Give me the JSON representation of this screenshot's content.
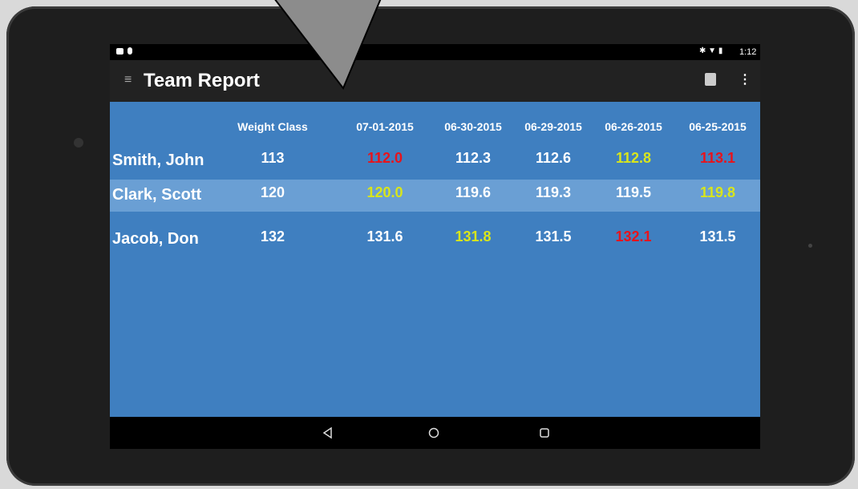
{
  "status_bar": {
    "time": "1:12"
  },
  "app_bar": {
    "title": "Team Report"
  },
  "table": {
    "headers": [
      "Weight Class",
      "07-01-2015",
      "06-30-2015",
      "06-29-2015",
      "06-26-2015",
      "06-25-2015"
    ],
    "highlight_color": "#6a9fd4",
    "rows": [
      {
        "name": "Smith, John",
        "cells": [
          "113",
          "112.0",
          "112.3",
          "112.6",
          "112.8",
          "113.1"
        ],
        "colors": [
          "#ffffff",
          "#e8131b",
          "#ffffff",
          "#ffffff",
          "#d8e51c",
          "#e8131b"
        ],
        "highlight": false
      },
      {
        "name": "Clark, Scott",
        "cells": [
          "120",
          "120.0",
          "119.6",
          "119.3",
          "119.5",
          "119.8"
        ],
        "colors": [
          "#ffffff",
          "#d8e51c",
          "#ffffff",
          "#ffffff",
          "#ffffff",
          "#d8e51c"
        ],
        "highlight": true
      },
      {
        "name": "Jacob, Don",
        "cells": [
          "132",
          "131.6",
          "131.8",
          "131.5",
          "132.1",
          "131.5"
        ],
        "colors": [
          "#ffffff",
          "#ffffff",
          "#d8e51c",
          "#ffffff",
          "#e8131b",
          "#ffffff"
        ],
        "highlight": false
      }
    ]
  }
}
